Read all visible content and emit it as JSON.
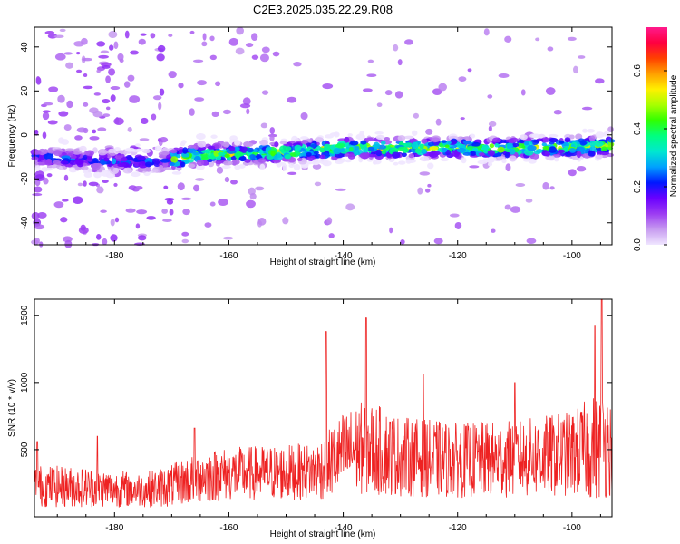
{
  "title": "C2E3.2025.035.22.29.R08",
  "chart_data": [
    {
      "type": "heatmap",
      "xlabel": "Height of straight line (km)",
      "ylabel": "Frequency (Hz)",
      "xlim": [
        -194,
        -93
      ],
      "ylim": [
        -50,
        49
      ],
      "x_ticks": [
        -180,
        -160,
        -140,
        -120,
        -100
      ],
      "y_ticks": [
        -40,
        -20,
        0,
        20,
        40
      ],
      "colorbar": {
        "label": "Normalized spectral amplitude",
        "range": [
          0.0,
          0.75
        ],
        "ticks": [
          "0.0",
          "0.2",
          "0.4",
          "0.6"
        ],
        "tick_values": [
          0.0,
          0.2,
          0.4,
          0.6
        ],
        "colors": [
          "#f0e6ff",
          "#c79bf0",
          "#9c3cf2",
          "#6a00ff",
          "#0018ff",
          "#00a0ff",
          "#00e8d0",
          "#00ff80",
          "#30ff00",
          "#a8ff00",
          "#fff000",
          "#ffa000",
          "#ff4000",
          "#ff0040",
          "#ff1a8c"
        ]
      },
      "band": {
        "center_freq_points": [
          [
            -194,
            -10
          ],
          [
            -180,
            -12
          ],
          [
            -172,
            -12
          ],
          [
            -165,
            -9
          ],
          [
            -150,
            -8
          ],
          [
            -140,
            -6
          ],
          [
            -130,
            -6
          ],
          [
            -120,
            -6
          ],
          [
            -110,
            -6
          ],
          [
            -93,
            -5
          ]
        ],
        "width_hz": 8,
        "peak_amplitude": 0.75
      }
    },
    {
      "type": "line",
      "xlabel": "Height of straight line (km)",
      "ylabel": "SNR (10 * v/v)",
      "xlim": [
        -194,
        -93
      ],
      "ylim": [
        0,
        1620
      ],
      "x_ticks": [
        -180,
        -160,
        -140,
        -120,
        -100
      ],
      "y_ticks": [
        500,
        1000,
        1500
      ],
      "color": "#ee2222",
      "envelope": {
        "x": [
          -194,
          -185,
          -175,
          -170,
          -165,
          -160,
          -150,
          -145,
          -143,
          -140,
          -136,
          -130,
          -120,
          -110,
          -100,
          -96,
          -94,
          -93
        ],
        "mean": [
          230,
          220,
          200,
          230,
          300,
          320,
          330,
          340,
          380,
          480,
          520,
          450,
          420,
          430,
          470,
          520,
          560,
          500
        ],
        "spread": [
          160,
          150,
          130,
          160,
          200,
          200,
          210,
          210,
          260,
          300,
          360,
          300,
          280,
          290,
          320,
          400,
          430,
          330
        ]
      },
      "peaks": [
        {
          "x": -193.5,
          "y": 560
        },
        {
          "x": -183.0,
          "y": 600
        },
        {
          "x": -166.0,
          "y": 660
        },
        {
          "x": -143.0,
          "y": 1380
        },
        {
          "x": -136.0,
          "y": 1480
        },
        {
          "x": -126.0,
          "y": 1060
        },
        {
          "x": -110.0,
          "y": 1000
        },
        {
          "x": -96.0,
          "y": 1420
        },
        {
          "x": -94.8,
          "y": 1620
        }
      ]
    }
  ]
}
